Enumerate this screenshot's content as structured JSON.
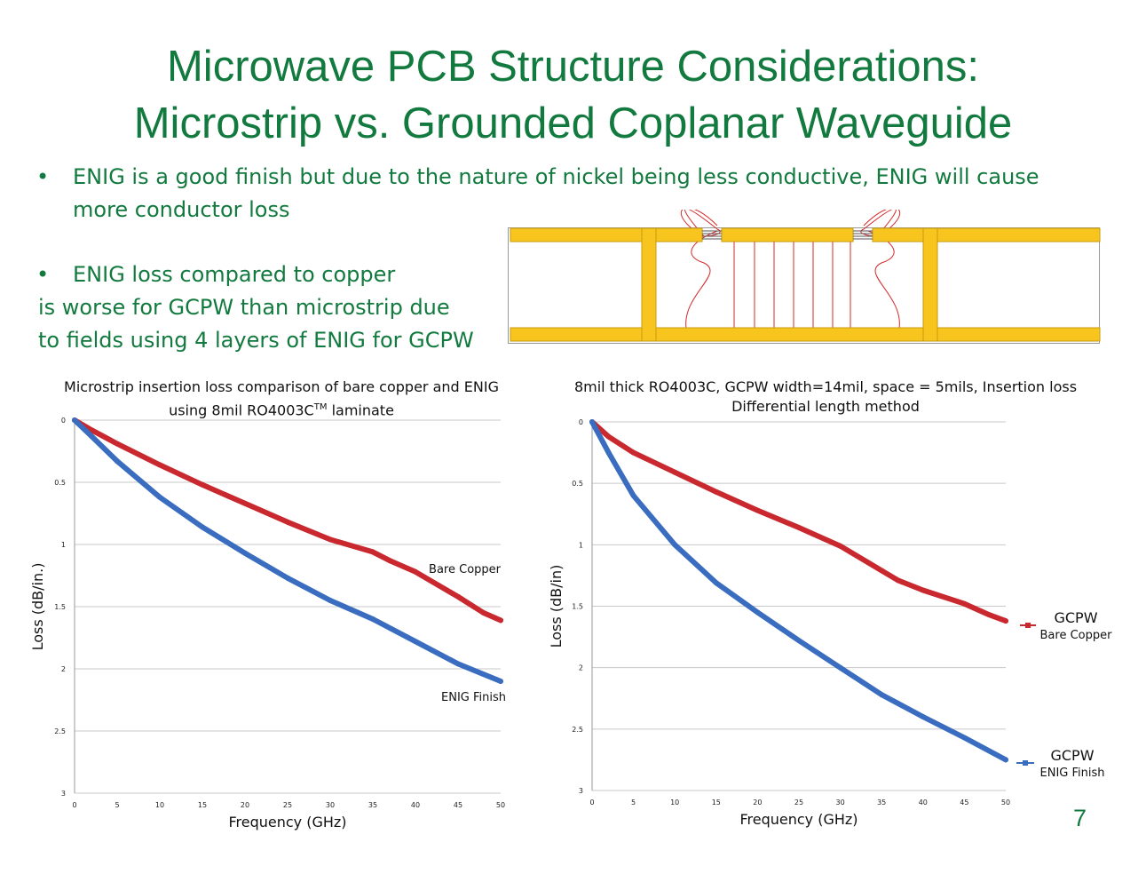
{
  "slide": {
    "title_line1": "Microwave PCB Structure Considerations:",
    "title_line2": "Microstrip vs. Grounded Coplanar Waveguide",
    "bullet1_line1": "ENIG is a good finish but due to the nature of nickel being less conductive, ENIG will cause",
    "bullet1_line2": "more conductor loss",
    "bullet2_line1": "ENIG loss compared to copper",
    "bullet2_line2": "is worse for GCPW than microstrip due",
    "bullet2_line3": "to fields using 4 layers of ENIG for GCPW",
    "bullet_symbol": "•",
    "page_number": "7",
    "title_color": "#127a3e"
  },
  "chart_data": [
    {
      "type": "line",
      "title_line1": "Microstrip insertion loss comparison of bare copper and ENIG",
      "title_line2_pre": "using 8mil RO4003C",
      "title_line2_sup": "TM",
      "title_line2_post": " laminate",
      "xlabel": "Frequency (GHz)",
      "ylabel": "Loss (dB/in.)",
      "xlim": [
        0,
        50
      ],
      "ylim": [
        0,
        3
      ],
      "y_inverted": true,
      "x_ticks": [
        "0",
        "5",
        "10",
        "15",
        "20",
        "25",
        "30",
        "35",
        "40",
        "45",
        "50"
      ],
      "y_ticks": [
        "0",
        "0.5",
        "1",
        "1.5",
        "2",
        "2.5",
        "3"
      ],
      "grid": true,
      "series": [
        {
          "name": "Bare Copper",
          "label_line1": "Bare Copper",
          "label_line2": "",
          "color": "#c8282e",
          "x": [
            0,
            2,
            5,
            10,
            15,
            20,
            25,
            30,
            35,
            37,
            40,
            45,
            48,
            50
          ],
          "y": [
            0,
            0.08,
            0.19,
            0.36,
            0.52,
            0.67,
            0.82,
            0.96,
            1.06,
            1.13,
            1.22,
            1.42,
            1.55,
            1.61
          ]
        },
        {
          "name": "ENIG Finish",
          "label_line1": "ENIG Finish",
          "label_line2": "",
          "color": "#3a6dc0",
          "x": [
            0,
            2,
            5,
            10,
            15,
            20,
            25,
            30,
            35,
            40,
            45,
            50
          ],
          "y": [
            0,
            0.13,
            0.33,
            0.62,
            0.86,
            1.07,
            1.27,
            1.45,
            1.6,
            1.78,
            1.96,
            2.1
          ]
        }
      ]
    },
    {
      "type": "line",
      "title_line1": "8mil thick RO4003C,  GCPW width=14mil, space = 5mils, Insertion loss",
      "title_line2_pre": "Differential length method",
      "title_line2_sup": "",
      "title_line2_post": "",
      "xlabel": "Frequency (GHz)",
      "ylabel": "Loss (dB/in)",
      "xlim": [
        0,
        50
      ],
      "ylim": [
        0,
        3
      ],
      "y_inverted": true,
      "x_ticks": [
        "0",
        "5",
        "10",
        "15",
        "20",
        "25",
        "30",
        "35",
        "40",
        "45",
        "50"
      ],
      "y_ticks": [
        "0",
        "0.5",
        "1",
        "1.5",
        "2",
        "2.5",
        "3"
      ],
      "grid": true,
      "series": [
        {
          "name": "GCPW Bare Copper",
          "label_line1": "GCPW",
          "label_line2": "Bare Copper",
          "color": "#c8282e",
          "x": [
            0,
            2,
            5,
            10,
            15,
            20,
            25,
            30,
            35,
            37,
            40,
            45,
            48,
            50
          ],
          "y": [
            0,
            0.12,
            0.25,
            0.41,
            0.57,
            0.72,
            0.86,
            1.01,
            1.21,
            1.29,
            1.37,
            1.48,
            1.57,
            1.62
          ]
        },
        {
          "name": "GCPW ENIG Finish",
          "label_line1": "GCPW",
          "label_line2": "ENIG Finish",
          "color": "#3a6dc0",
          "x": [
            0,
            2,
            5,
            10,
            15,
            20,
            25,
            30,
            35,
            40,
            45,
            50
          ],
          "y": [
            0,
            0.25,
            0.6,
            1.0,
            1.31,
            1.55,
            1.78,
            2.0,
            2.22,
            2.4,
            2.57,
            2.75
          ]
        }
      ]
    }
  ]
}
